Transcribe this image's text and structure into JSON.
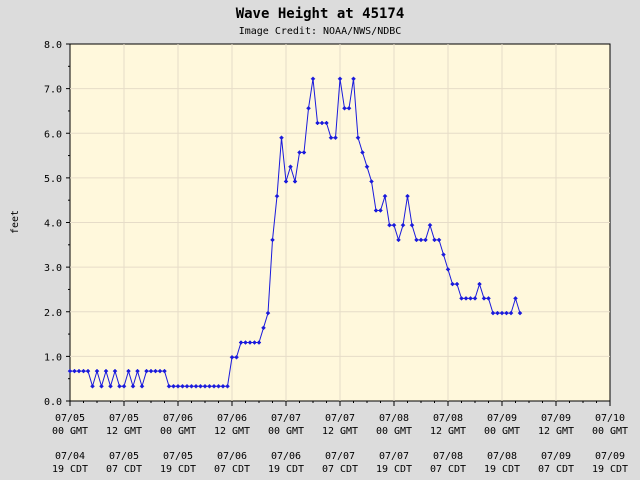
{
  "chart_data": {
    "type": "line",
    "title": "Wave Height at 45174",
    "subtitle": "Image Credit: NOAA/NWS/NDBC",
    "ylabel": "feet",
    "xlabel": "",
    "ylim": [
      0.0,
      8.0
    ],
    "yticks": [
      "0.0",
      "1.0",
      "2.0",
      "3.0",
      "4.0",
      "5.0",
      "6.0",
      "7.0",
      "8.0"
    ],
    "xticks_gmt": [
      [
        "07/05",
        "00 GMT"
      ],
      [
        "07/05",
        "12 GMT"
      ],
      [
        "07/06",
        "00 GMT"
      ],
      [
        "07/06",
        "12 GMT"
      ],
      [
        "07/07",
        "00 GMT"
      ],
      [
        "07/07",
        "12 GMT"
      ],
      [
        "07/08",
        "00 GMT"
      ],
      [
        "07/08",
        "12 GMT"
      ],
      [
        "07/09",
        "00 GMT"
      ],
      [
        "07/09",
        "12 GMT"
      ],
      [
        "07/10",
        "00 GMT"
      ]
    ],
    "xticks_cdt": [
      [
        "07/04",
        "19 CDT"
      ],
      [
        "07/05",
        "07 CDT"
      ],
      [
        "07/05",
        "19 CDT"
      ],
      [
        "07/06",
        "07 CDT"
      ],
      [
        "07/06",
        "19 CDT"
      ],
      [
        "07/07",
        "07 CDT"
      ],
      [
        "07/07",
        "19 CDT"
      ],
      [
        "07/08",
        "07 CDT"
      ],
      [
        "07/08",
        "19 CDT"
      ],
      [
        "07/09",
        "07 CDT"
      ],
      [
        "07/09",
        "19 CDT"
      ]
    ],
    "grid": true,
    "colors": {
      "line": "#1a1adc",
      "plot_bg": "#fff8dc",
      "page_bg": "#dcdcdc",
      "grid": "#e6dcc8"
    },
    "series": [
      {
        "x_hours_gmt": [
          0,
          1,
          2,
          3,
          4,
          5,
          6,
          7,
          8,
          9,
          10,
          11,
          12,
          13,
          14,
          15,
          16,
          17,
          18,
          19,
          20,
          21,
          22,
          23,
          24,
          25,
          26,
          27,
          28,
          29,
          30,
          31,
          32,
          33,
          34,
          35,
          36,
          37,
          38,
          39,
          40,
          41,
          42,
          43,
          44,
          45,
          46,
          47,
          48,
          49,
          50,
          51,
          52,
          53,
          54,
          55,
          56,
          57,
          58,
          59,
          60,
          61,
          62,
          63,
          64,
          65,
          66,
          67,
          68,
          69,
          70,
          71,
          72,
          73,
          74,
          75,
          76,
          77,
          78,
          79,
          80,
          81,
          82,
          83,
          84,
          85,
          86,
          87,
          88,
          89,
          90,
          91,
          92,
          93,
          94,
          95,
          96,
          97,
          98,
          99,
          100
        ],
        "values": [
          0.67,
          0.67,
          0.67,
          0.67,
          0.67,
          0.33,
          0.67,
          0.33,
          0.67,
          0.33,
          0.67,
          0.33,
          0.33,
          0.67,
          0.33,
          0.67,
          0.33,
          0.67,
          0.67,
          0.67,
          0.67,
          0.67,
          0.33,
          0.33,
          0.33,
          0.33,
          0.33,
          0.33,
          0.33,
          0.33,
          0.33,
          0.33,
          0.33,
          0.33,
          0.33,
          0.33,
          0.98,
          0.98,
          1.31,
          1.31,
          1.31,
          1.31,
          1.31,
          1.64,
          1.97,
          3.61,
          4.59,
          5.9,
          4.92,
          5.25,
          4.92,
          5.57,
          5.57,
          6.56,
          7.22,
          6.23,
          6.23,
          6.23,
          5.9,
          5.9,
          7.22,
          6.56,
          6.56,
          7.22,
          5.9,
          5.57,
          5.25,
          4.92,
          4.27,
          4.27,
          4.59,
          3.94,
          3.94,
          3.61,
          3.94,
          4.59,
          3.94,
          3.61,
          3.61,
          3.61,
          3.94,
          3.61,
          3.61,
          3.28,
          2.95,
          2.62,
          2.62,
          2.3,
          2.3,
          2.3,
          2.3,
          2.62,
          2.3,
          2.3,
          1.97,
          1.97,
          1.97,
          1.97,
          1.97,
          2.3,
          1.97
        ]
      }
    ]
  }
}
